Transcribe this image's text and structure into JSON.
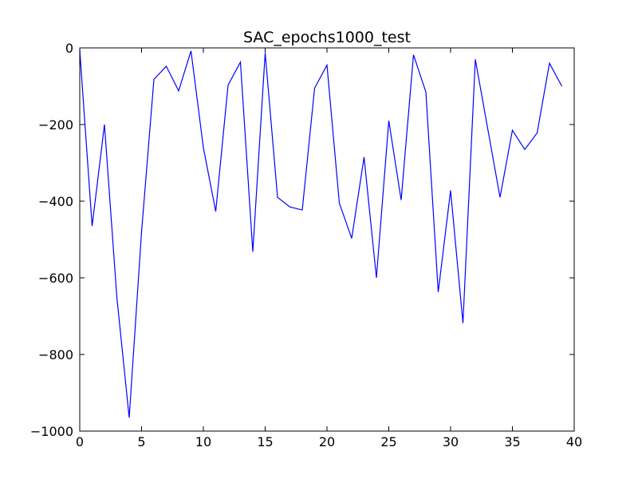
{
  "chart_data": {
    "type": "line",
    "title": "SAC_epochs1000_test",
    "xlabel": "",
    "ylabel": "",
    "xlim": [
      0,
      40
    ],
    "ylim": [
      -1000,
      0
    ],
    "xticks": [
      0,
      5,
      10,
      15,
      20,
      25,
      30,
      35,
      40
    ],
    "yticks": [
      0,
      -200,
      -400,
      -600,
      -800,
      -1000
    ],
    "xtick_labels": [
      "0",
      "5",
      "10",
      "15",
      "20",
      "25",
      "30",
      "35",
      "40"
    ],
    "ytick_labels": [
      "0",
      "−200",
      "−400",
      "−600",
      "−800",
      "−1000"
    ],
    "grid": false,
    "series": [
      {
        "color": "#0000ff",
        "x": [
          0,
          1,
          2,
          3,
          4,
          5,
          6,
          7,
          8,
          9,
          10,
          11,
          12,
          13,
          14,
          15,
          16,
          17,
          18,
          19,
          20,
          21,
          22,
          23,
          24,
          25,
          26,
          27,
          28,
          29,
          30,
          31,
          32,
          33,
          34,
          35,
          36,
          37,
          38,
          39
        ],
        "values": [
          -5,
          -465,
          -200,
          -650,
          -965,
          -480,
          -82,
          -48,
          -112,
          -8,
          -260,
          -427,
          -97,
          -37,
          -532,
          -13,
          -390,
          -415,
          -423,
          -105,
          -45,
          -405,
          -497,
          -285,
          -600,
          -190,
          -397,
          -18,
          -115,
          -637,
          -372,
          -718,
          -30,
          -210,
          -390,
          -215,
          -265,
          -222,
          -40,
          -100
        ]
      }
    ]
  }
}
